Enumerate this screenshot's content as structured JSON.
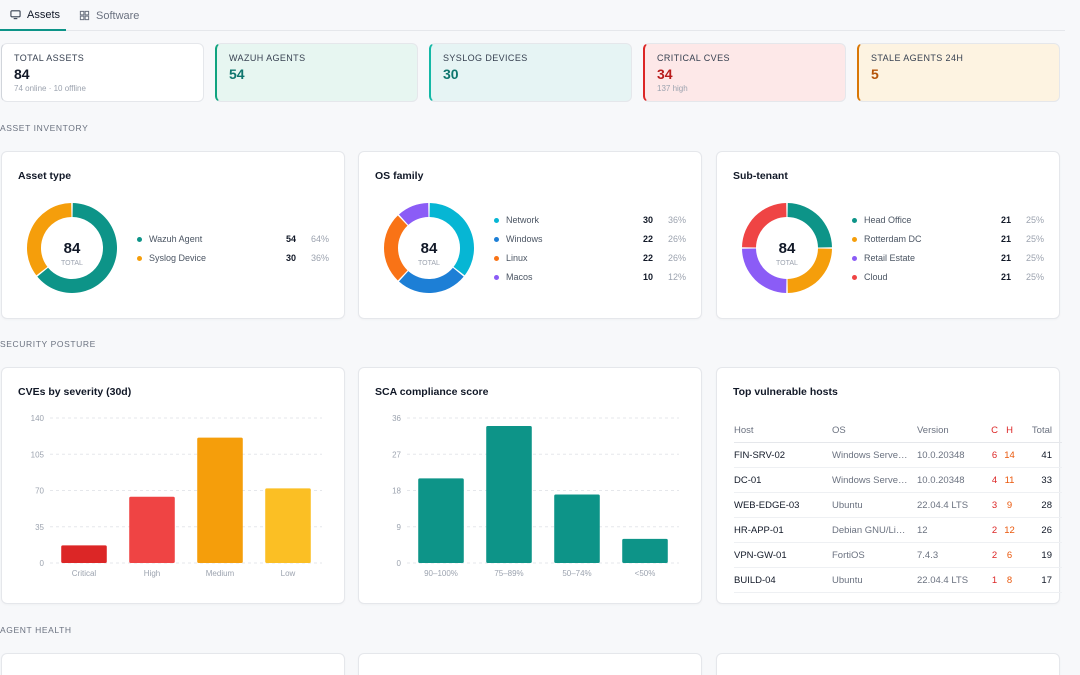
{
  "tabs": [
    {
      "label": "Assets"
    },
    {
      "label": "Software"
    }
  ],
  "stats": [
    {
      "label": "TOTAL ASSETS",
      "value": "84",
      "sub": "74 online · 10 offline"
    },
    {
      "label": "WAZUH AGENTS",
      "value": "54",
      "sub": ""
    },
    {
      "label": "SYSLOG DEVICES",
      "value": "30",
      "sub": ""
    },
    {
      "label": "CRITICAL CVES",
      "value": "34",
      "sub": "137 high"
    },
    {
      "label": "STALE AGENTS 24H",
      "value": "5",
      "sub": ""
    }
  ],
  "sections": {
    "asset_inventory": "ASSET INVENTORY",
    "security_posture": "SECURITY POSTURE",
    "agent_health": "AGENT HEALTH"
  },
  "donuts": [
    {
      "title": "Asset type",
      "total": "84",
      "total_label": "TOTAL",
      "items": [
        {
          "name": "Wazuh Agent",
          "count": "54",
          "pct": "64%",
          "color": "#0d9488",
          "value": 54
        },
        {
          "name": "Syslog Device",
          "count": "30",
          "pct": "36%",
          "color": "#f59e0b",
          "value": 30
        }
      ]
    },
    {
      "title": "OS family",
      "total": "84",
      "total_label": "TOTAL",
      "items": [
        {
          "name": "Network",
          "count": "30",
          "pct": "36%",
          "color": "#06b6d4",
          "value": 30
        },
        {
          "name": "Windows",
          "count": "22",
          "pct": "26%",
          "color": "#1d7fd6",
          "value": 22
        },
        {
          "name": "Linux",
          "count": "22",
          "pct": "26%",
          "color": "#f97316",
          "value": 22
        },
        {
          "name": "Macos",
          "count": "10",
          "pct": "12%",
          "color": "#8b5cf6",
          "value": 10
        }
      ]
    },
    {
      "title": "Sub-tenant",
      "total": "84",
      "total_label": "TOTAL",
      "items": [
        {
          "name": "Head Office",
          "count": "21",
          "pct": "25%",
          "color": "#0d9488",
          "value": 21
        },
        {
          "name": "Rotterdam DC",
          "count": "21",
          "pct": "25%",
          "color": "#f59e0b",
          "value": 21
        },
        {
          "name": "Retail Estate",
          "count": "21",
          "pct": "25%",
          "color": "#8b5cf6",
          "value": 21
        },
        {
          "name": "Cloud",
          "count": "21",
          "pct": "25%",
          "color": "#ef4444",
          "value": 21
        }
      ]
    }
  ],
  "chart_data": [
    {
      "type": "bar",
      "title": "CVEs by severity (30d)",
      "categories": [
        "Critical",
        "High",
        "Medium",
        "Low"
      ],
      "values": [
        17,
        64,
        121,
        72
      ],
      "colors": [
        "#dc2626",
        "#ef4444",
        "#f59e0b",
        "#fbbf24"
      ],
      "yticks": [
        0,
        35,
        70,
        105,
        140
      ],
      "ylim": [
        0,
        140
      ],
      "grid": true
    },
    {
      "type": "bar",
      "title": "SCA compliance score",
      "categories": [
        "90–100%",
        "75–89%",
        "50–74%",
        "<50%"
      ],
      "values": [
        21,
        34,
        17,
        6
      ],
      "colors": [
        "#0d9488",
        "#0d9488",
        "#0d9488",
        "#0d9488"
      ],
      "yticks": [
        0,
        9,
        18,
        27,
        36
      ],
      "ylim": [
        0,
        36
      ],
      "grid": true
    }
  ],
  "vuln_hosts": {
    "title": "Top vulnerable hosts",
    "headers": {
      "host": "Host",
      "os": "OS",
      "version": "Version",
      "c": "C",
      "h": "H",
      "total": "Total"
    },
    "rows": [
      {
        "host": "FIN-SRV-02",
        "os": "Windows Serve…",
        "version": "10.0.20348",
        "c": "6",
        "h": "14",
        "total": "41"
      },
      {
        "host": "DC-01",
        "os": "Windows Serve…",
        "version": "10.0.20348",
        "c": "4",
        "h": "11",
        "total": "33"
      },
      {
        "host": "WEB-EDGE-03",
        "os": "Ubuntu",
        "version": "22.04.4 LTS",
        "c": "3",
        "h": "9",
        "total": "28"
      },
      {
        "host": "HR-APP-01",
        "os": "Debian GNU/Li…",
        "version": "12",
        "c": "2",
        "h": "12",
        "total": "26"
      },
      {
        "host": "VPN-GW-01",
        "os": "FortiOS",
        "version": "7.4.3",
        "c": "2",
        "h": "6",
        "total": "19"
      },
      {
        "host": "BUILD-04",
        "os": "Ubuntu",
        "version": "22.04.4 LTS",
        "c": "1",
        "h": "8",
        "total": "17"
      }
    ]
  },
  "colors": {
    "accent": "#0d9488",
    "stat_bg": [
      "#ffffff",
      "#e7f6f1",
      "#e6f4f4",
      "#fde8e8",
      "#fdf3e1"
    ],
    "stat_border": [
      "#d1d5db",
      "#10a37f",
      "#14b8a6",
      "#dc2626",
      "#d97706"
    ],
    "stat_value": [
      "#111827",
      "#0f766e",
      "#0f766e",
      "#b91c1c",
      "#b45309"
    ]
  }
}
